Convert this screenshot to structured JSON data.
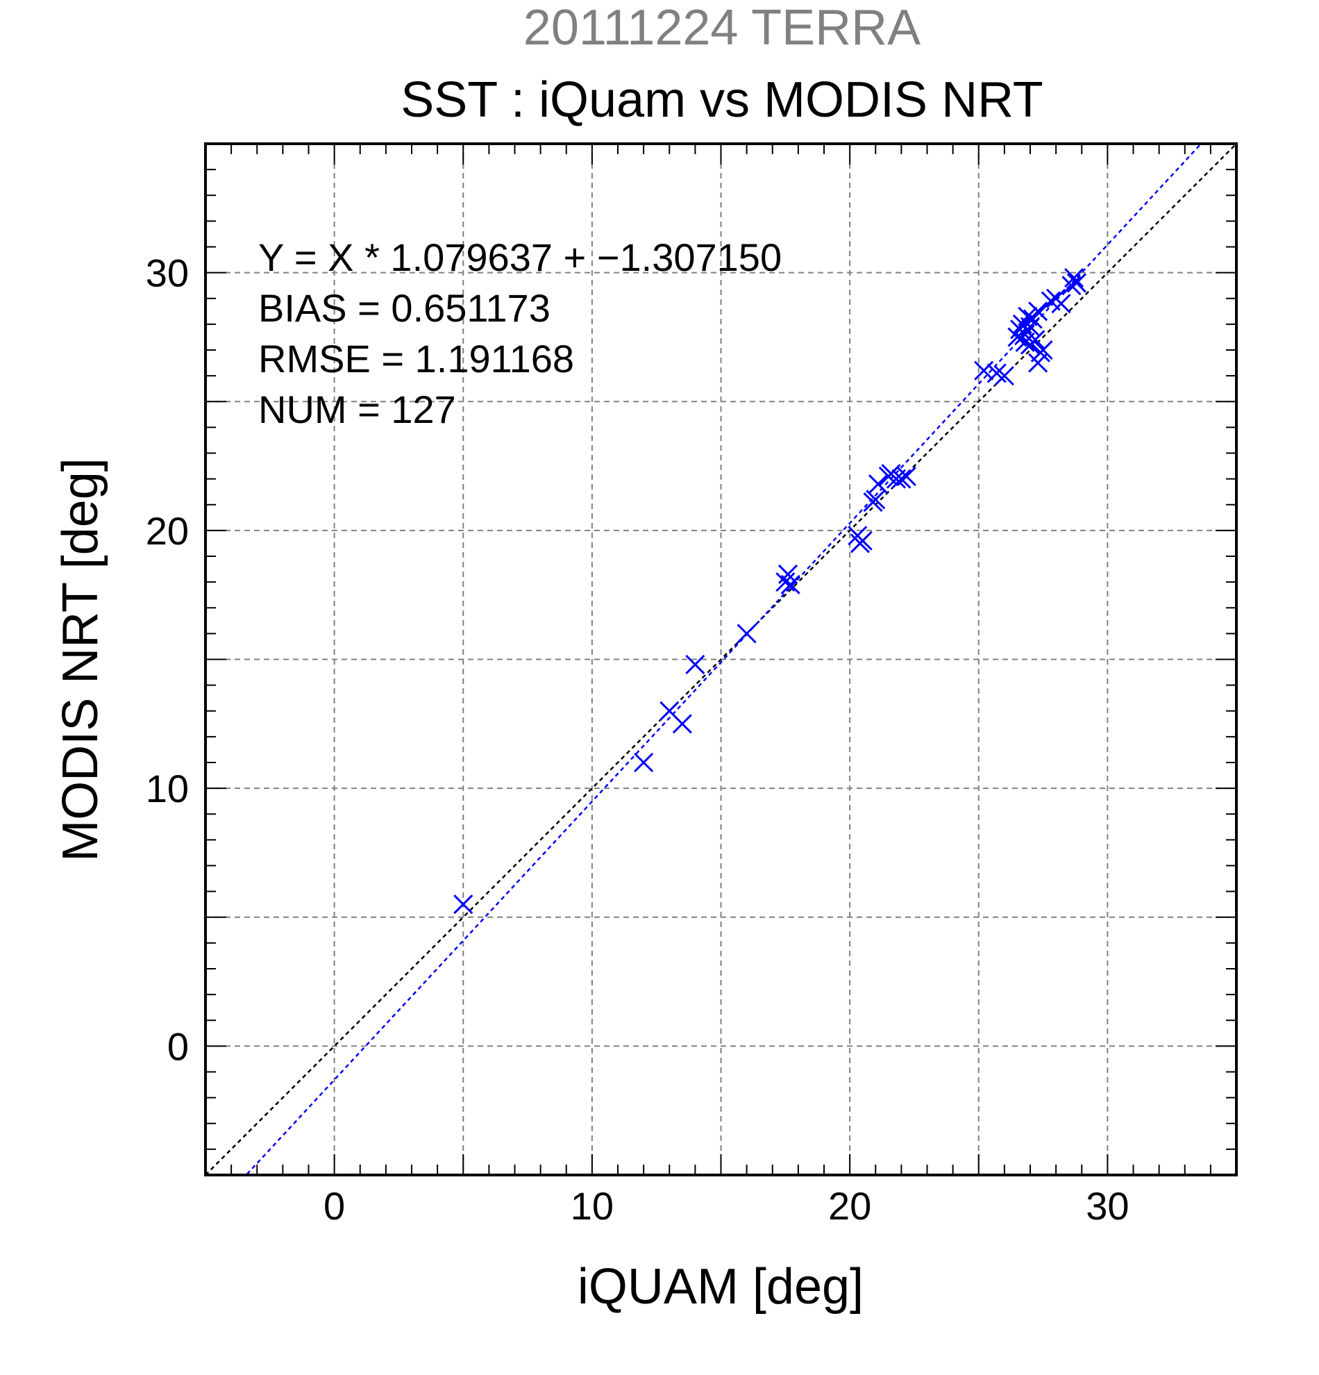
{
  "chart_data": {
    "type": "scatter",
    "title": "20111224 TERRA",
    "subtitle": "SST : iQuam vs MODIS NRT",
    "xlabel": "iQUAM [deg]",
    "ylabel": "MODIS NRT [deg]",
    "xlim": [
      -5,
      35
    ],
    "ylim": [
      -5,
      35
    ],
    "xticks": [
      0,
      10,
      20,
      30
    ],
    "yticks": [
      0,
      10,
      20,
      30
    ],
    "xtick_labels": [
      "0",
      "10",
      "20",
      "30"
    ],
    "ytick_labels": [
      "0",
      "10",
      "20",
      "30"
    ],
    "minor_tick_step": 1,
    "grid_step": 5,
    "grid": true,
    "stats": [
      "Y = X * 1.079637 + −1.307150",
      "BIAS = 0.651173",
      "RMSE = 1.191168",
      "NUM = 127"
    ],
    "fit": {
      "slope": 1.079637,
      "intercept": -1.30715,
      "color": "#0000ff"
    },
    "identity_line_color": "#000000",
    "marker": "x",
    "series": [
      {
        "color": "#0000ff",
        "points": [
          [
            5.0,
            5.5
          ],
          [
            12.0,
            11.0
          ],
          [
            13.0,
            13.0
          ],
          [
            13.5,
            12.5
          ],
          [
            14.0,
            14.8
          ],
          [
            16.0,
            16.0
          ],
          [
            17.5,
            18.0
          ],
          [
            17.6,
            18.3
          ],
          [
            17.7,
            17.9
          ],
          [
            20.3,
            19.8
          ],
          [
            20.4,
            19.5
          ],
          [
            20.5,
            19.6
          ],
          [
            20.9,
            21.1
          ],
          [
            21.0,
            21.2
          ],
          [
            21.1,
            21.8
          ],
          [
            21.5,
            22.1
          ],
          [
            21.6,
            22.2
          ],
          [
            21.8,
            22.0
          ],
          [
            22.0,
            22.0
          ],
          [
            22.2,
            22.1
          ],
          [
            25.2,
            26.2
          ],
          [
            25.7,
            26.1
          ],
          [
            26.0,
            26.0
          ],
          [
            26.5,
            27.5
          ],
          [
            26.6,
            27.8
          ],
          [
            26.7,
            28.0
          ],
          [
            26.8,
            27.6
          ],
          [
            26.9,
            28.3
          ],
          [
            27.0,
            27.9
          ],
          [
            27.1,
            28.2
          ],
          [
            27.2,
            27.4
          ],
          [
            27.3,
            28.5
          ],
          [
            27.0,
            27.2
          ],
          [
            26.8,
            27.3
          ],
          [
            27.3,
            26.5
          ],
          [
            27.4,
            26.9
          ],
          [
            27.5,
            27.0
          ],
          [
            27.8,
            28.9
          ],
          [
            28.0,
            29.0
          ],
          [
            28.2,
            28.8
          ],
          [
            28.6,
            29.5
          ],
          [
            28.7,
            29.8
          ],
          [
            28.8,
            29.6
          ]
        ]
      }
    ]
  }
}
